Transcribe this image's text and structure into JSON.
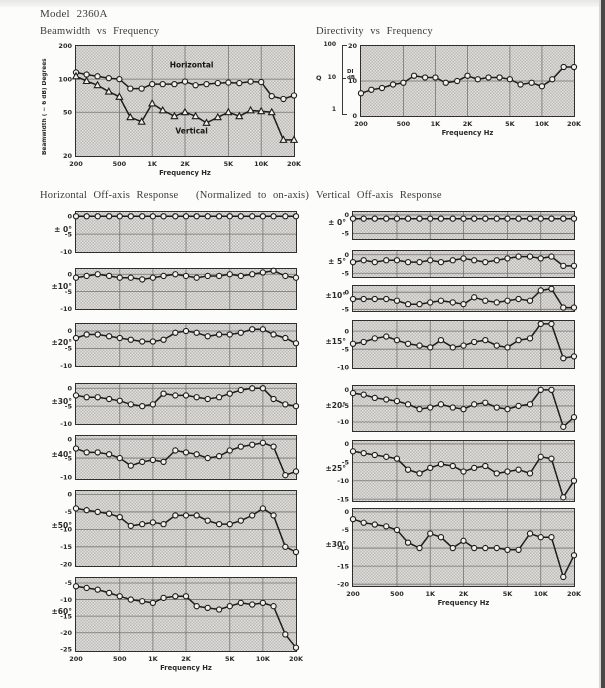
{
  "header": {
    "model": "Model 2360A"
  },
  "sections": {
    "horizontal": {
      "title": "Horizontal Off-axis Response",
      "note": "(Normalized to on-axis)"
    },
    "vertical": {
      "title": "Vertical Off-axis Response"
    }
  },
  "colors": {
    "ink": "#1d1c1a",
    "grid": "#75746f",
    "marker_fill": "#f2f1ed",
    "plot_bg": "#e0dfdb",
    "paper": "#fcfcfa",
    "edge": "#4a4947"
  },
  "frequencies_hz": [
    200,
    250,
    315,
    400,
    500,
    630,
    800,
    1000,
    1250,
    1600,
    2000,
    2500,
    3150,
    4000,
    5000,
    6300,
    8000,
    10000,
    12500,
    16000,
    20000
  ],
  "x_axis": {
    "label": "Frequency Hz",
    "min_hz": 200,
    "max_hz": 20000,
    "ticks": [
      {
        "f": 200,
        "label": "200"
      },
      {
        "f": 500,
        "label": "500"
      },
      {
        "f": 1000,
        "label": "1K"
      },
      {
        "f": 2000,
        "label": "2K"
      },
      {
        "f": 5000,
        "label": "5K"
      },
      {
        "f": 10000,
        "label": "10K"
      },
      {
        "f": 20000,
        "label": "20K"
      }
    ],
    "grid": [
      500,
      1000,
      2000,
      5000,
      10000
    ]
  },
  "chart_data": [
    {
      "id": "beamwidth",
      "type": "line",
      "title": "Beamwidth vs Frequency",
      "xlabel": "Frequency Hz",
      "ylabel": "Beamwidth ( − 6 dB) Degrees",
      "yscale": "log",
      "ylim": [
        20,
        200
      ],
      "yticks": [
        200,
        100,
        50,
        20
      ],
      "ygrid": [
        100,
        50
      ],
      "show_x_labels": true,
      "series": [
        {
          "name": "Horizontal",
          "marker": "circle",
          "values": [
            115,
            110,
            106,
            102,
            100,
            82,
            82,
            90,
            90,
            90,
            95,
            88,
            90,
            92,
            93,
            92,
            95,
            94,
            70,
            66,
            71
          ]
        },
        {
          "name": "Vertical",
          "marker": "triangle",
          "values": [
            106,
            96,
            88,
            77,
            69,
            45,
            41,
            60,
            52,
            46,
            50,
            46,
            40,
            45,
            50,
            46,
            52,
            51,
            50,
            28,
            28
          ]
        }
      ],
      "annotations": [
        {
          "text": "Horizontal",
          "f": 2300,
          "v": 128
        },
        {
          "text": "Vertical",
          "f": 2300,
          "v": 32
        }
      ]
    },
    {
      "id": "directivity",
      "type": "line",
      "title": "Directivity vs Frequency",
      "xlabel": "Frequency Hz",
      "ylim": [
        0,
        20
      ],
      "yticks": [
        20,
        10,
        0
      ],
      "ygrid": [
        10
      ],
      "show_x_labels": true,
      "q_axis": {
        "label": "Q",
        "ticks": [
          "100",
          "10",
          "1"
        ]
      },
      "di_axis": {
        "line1": "DI",
        "line2": "dB"
      },
      "series": [
        {
          "name": "DI dB",
          "marker": "circle",
          "values": [
            6.5,
            7.5,
            8,
            9,
            9.5,
            11.5,
            11,
            11,
            9.5,
            10,
            11.5,
            10.5,
            11,
            11,
            10.5,
            9,
            9.5,
            8.5,
            10.5,
            14,
            14
          ]
        }
      ]
    },
    {
      "id": "h0",
      "type": "line",
      "group": "horizontal",
      "angle_label": "± 0°",
      "ylim": [
        -10,
        1.2
      ],
      "yticks": [
        0,
        -5,
        -10
      ],
      "ygrid": [
        0,
        -5
      ],
      "show_x_labels": false,
      "series": [
        {
          "name": "±0°",
          "marker": "circle",
          "values": [
            0,
            0,
            0,
            0,
            0,
            0,
            0,
            0,
            0,
            0,
            0,
            0,
            0,
            0,
            0,
            0,
            0,
            0,
            0,
            0,
            0
          ]
        }
      ]
    },
    {
      "id": "h10",
      "type": "line",
      "group": "horizontal",
      "angle_label": "±10°",
      "ylim": [
        -10,
        1.5
      ],
      "yticks": [
        0,
        -5,
        -10
      ],
      "ygrid": [
        0,
        -5
      ],
      "show_x_labels": false,
      "series": [
        {
          "name": "±10°",
          "marker": "circle",
          "values": [
            -1,
            -0.5,
            0,
            -0.5,
            -1,
            -1,
            -1.5,
            -1,
            -0.5,
            0,
            -0.5,
            -1,
            -0.5,
            -0.5,
            0,
            -0.5,
            0,
            0.5,
            1,
            -0.5,
            -1
          ]
        }
      ]
    },
    {
      "id": "h20",
      "type": "line",
      "group": "horizontal",
      "angle_label": "±20°",
      "ylim": [
        -10,
        2
      ],
      "yticks": [
        0,
        -5,
        -10
      ],
      "ygrid": [
        0,
        -5
      ],
      "show_x_labels": false,
      "series": [
        {
          "name": "±20°",
          "marker": "circle",
          "values": [
            -2,
            -1,
            -1,
            -1.5,
            -2,
            -2.5,
            -3,
            -3,
            -2.5,
            -0.5,
            0,
            -0.5,
            -1.5,
            -1,
            -1,
            -0.5,
            0.5,
            0.5,
            -1,
            -2,
            -3.5
          ]
        }
      ]
    },
    {
      "id": "h30",
      "type": "line",
      "group": "horizontal",
      "angle_label": "±30°",
      "ylim": [
        -10,
        1.2
      ],
      "yticks": [
        0,
        -5,
        -10
      ],
      "ygrid": [
        0,
        -5
      ],
      "show_x_labels": false,
      "series": [
        {
          "name": "±30°",
          "marker": "circle",
          "values": [
            -2,
            -2.5,
            -2.5,
            -3,
            -3.5,
            -4.5,
            -5,
            -4.5,
            -1.5,
            -2,
            -2,
            -2.5,
            -3,
            -2.5,
            -1.5,
            -0.5,
            0,
            0,
            -3,
            -4.5,
            -5
          ]
        }
      ]
    },
    {
      "id": "h40",
      "type": "line",
      "group": "horizontal",
      "angle_label": "±40°",
      "ylim": [
        -10.5,
        0.8
      ],
      "yticks": [
        0,
        -5,
        -10
      ],
      "ygrid": [
        0,
        -5
      ],
      "show_x_labels": false,
      "series": [
        {
          "name": "±40°",
          "marker": "circle",
          "values": [
            -2.5,
            -3.5,
            -3.5,
            -4,
            -5,
            -7,
            -6,
            -5.5,
            -6,
            -3,
            -3.5,
            -4,
            -5,
            -4.5,
            -3,
            -2,
            -1.5,
            -1,
            -2,
            -9.5,
            -8.5
          ]
        }
      ]
    },
    {
      "id": "h50",
      "type": "line",
      "group": "horizontal",
      "angle_label": "±50°",
      "ylim": [
        -20.5,
        1
      ],
      "yticks": [
        0,
        -5,
        -10,
        -15,
        -20
      ],
      "ygrid": [
        0,
        -5,
        -10,
        -15
      ],
      "show_x_labels": false,
      "series": [
        {
          "name": "±50°",
          "marker": "circle",
          "values": [
            -4,
            -4.5,
            -5,
            -5.5,
            -6.5,
            -9,
            -8.5,
            -8,
            -8.5,
            -6,
            -6,
            -6,
            -7.5,
            -8.5,
            -8.5,
            -7.5,
            -6,
            -4,
            -6,
            -15,
            -16.5
          ]
        }
      ]
    },
    {
      "id": "h60",
      "type": "line",
      "group": "horizontal",
      "angle_label": "±60°",
      "ylim": [
        -25.5,
        -3.5
      ],
      "yticks": [
        -5,
        -10,
        -15,
        -20,
        -25
      ],
      "ygrid": [
        -5,
        -10,
        -15,
        -20
      ],
      "show_x_labels": true,
      "xlabel": "Frequency Hz",
      "series": [
        {
          "name": "±60°",
          "marker": "circle",
          "values": [
            -6,
            -6.5,
            -7,
            -8,
            -9,
            -10,
            -10.5,
            -11,
            -9.5,
            -9,
            -9,
            -12,
            -12.5,
            -13,
            -12,
            -11,
            -11.5,
            -11,
            -12,
            -20.5,
            -24.5
          ]
        }
      ]
    },
    {
      "id": "v0",
      "type": "line",
      "group": "vertical",
      "angle_label": "± 0°",
      "ylim": [
        -6.5,
        0.8
      ],
      "yticks": [
        0,
        -5
      ],
      "ygrid": [
        0,
        -5
      ],
      "show_x_labels": false,
      "series": [
        {
          "name": "±0°",
          "marker": "circle",
          "values": [
            -1,
            -1,
            -1,
            -1,
            -1,
            -1,
            -1,
            -1,
            -1,
            -1,
            -1,
            -1,
            -1,
            -1,
            -1,
            -1,
            -1,
            -1,
            -1,
            -1,
            -1
          ]
        }
      ]
    },
    {
      "id": "v5",
      "type": "line",
      "group": "vertical",
      "angle_label": "± 5°",
      "ylim": [
        -6,
        1
      ],
      "yticks": [
        0,
        -5
      ],
      "ygrid": [
        0,
        -5
      ],
      "show_x_labels": false,
      "series": [
        {
          "name": "±5°",
          "marker": "circle",
          "values": [
            -2,
            -1.5,
            -2,
            -1.5,
            -1.5,
            -2,
            -2,
            -1.5,
            -2,
            -1.5,
            -1,
            -1.5,
            -2,
            -1.5,
            -1,
            -0.5,
            -0.5,
            -1,
            -0.5,
            -3,
            -3
          ]
        }
      ]
    },
    {
      "id": "v10",
      "type": "line",
      "group": "vertical",
      "angle_label": "±10°",
      "ylim": [
        -5.5,
        1.8
      ],
      "yticks": [
        0,
        -5
      ],
      "ygrid": [
        0,
        -5
      ],
      "show_x_labels": false,
      "series": [
        {
          "name": "±10°",
          "marker": "circle",
          "values": [
            -2,
            -2,
            -2,
            -2,
            -2.5,
            -3.5,
            -3.5,
            -3,
            -2.5,
            -3,
            -3.5,
            -1.5,
            -2.5,
            -3,
            -2.5,
            -2,
            -2.5,
            0.5,
            1,
            -4.5,
            -4.5
          ]
        }
      ]
    },
    {
      "id": "v15",
      "type": "line",
      "group": "vertical",
      "angle_label": "±15°",
      "ylim": [
        -10.2,
        2.8
      ],
      "yticks": [
        0,
        -5,
        -10
      ],
      "ygrid": [
        0,
        -5
      ],
      "show_x_labels": false,
      "series": [
        {
          "name": "±15°",
          "marker": "circle",
          "values": [
            -3.5,
            -3,
            -2,
            -1.5,
            -2.5,
            -3.5,
            -4,
            -4.5,
            -2.5,
            -4.5,
            -4,
            -3,
            -2.5,
            -4,
            -4.5,
            -2.5,
            -2,
            2,
            2,
            -7.5,
            -7
          ]
        }
      ]
    },
    {
      "id": "v20",
      "type": "line",
      "group": "vertical",
      "angle_label": "±20°",
      "ylim": [
        -12.8,
        1.2
      ],
      "yticks": [
        0,
        -5,
        -10
      ],
      "ygrid": [
        0,
        -5,
        -10
      ],
      "show_x_labels": false,
      "series": [
        {
          "name": "±20°",
          "marker": "circle",
          "values": [
            -1,
            -1.5,
            -2.5,
            -3,
            -3.5,
            -4.5,
            -6,
            -5.5,
            -4.5,
            -5.5,
            -6,
            -4.5,
            -4,
            -5.5,
            -6,
            -5,
            -4.5,
            0,
            0,
            -11.5,
            -8.5
          ]
        }
      ]
    },
    {
      "id": "v25",
      "type": "line",
      "group": "vertical",
      "angle_label": "±25°",
      "ylim": [
        -15.5,
        0.8
      ],
      "yticks": [
        0,
        -5,
        -10,
        -15
      ],
      "ygrid": [
        0,
        -5,
        -10,
        -15
      ],
      "show_x_labels": false,
      "series": [
        {
          "name": "±25°",
          "marker": "circle",
          "values": [
            -2,
            -2.5,
            -3,
            -3.5,
            -4,
            -7,
            -8,
            -6.5,
            -5.5,
            -6,
            -7.5,
            -6.5,
            -6,
            -8,
            -7.5,
            -7,
            -8,
            -3.5,
            -4,
            -14.5,
            -10
          ]
        }
      ]
    },
    {
      "id": "v30",
      "type": "line",
      "group": "vertical",
      "angle_label": "±30°",
      "ylim": [
        -20.5,
        0.8
      ],
      "yticks": [
        0,
        -5,
        -10,
        -15,
        -20
      ],
      "ygrid": [
        0,
        -5,
        -10,
        -15,
        -20
      ],
      "show_x_labels": true,
      "xlabel": "Frequency Hz",
      "series": [
        {
          "name": "±30°",
          "marker": "circle",
          "values": [
            -2,
            -3,
            -3.5,
            -4,
            -5,
            -8.5,
            -10,
            -6,
            -7,
            -10,
            -8,
            -10,
            -10,
            -10,
            -10.5,
            -10.5,
            -6,
            -7,
            -7,
            -18,
            -12
          ]
        }
      ]
    }
  ]
}
